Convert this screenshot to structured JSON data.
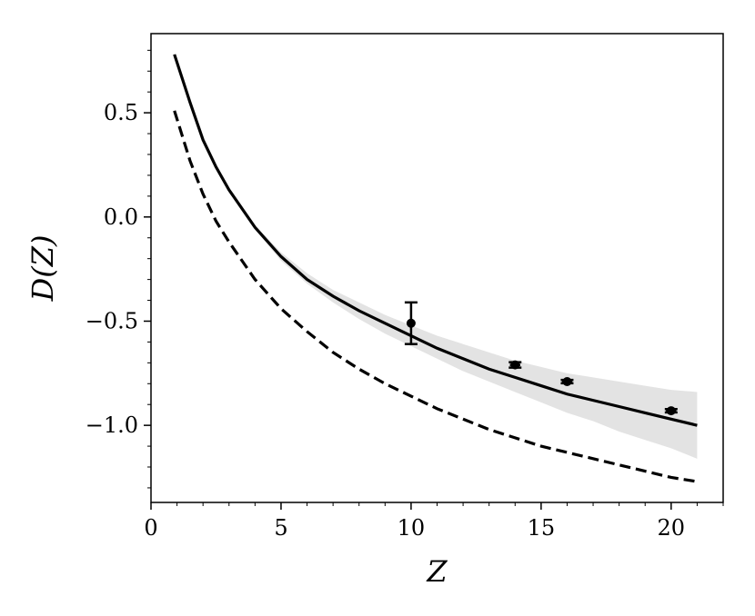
{
  "chart_data": {
    "type": "line",
    "xlabel": "Z",
    "ylabel": "D(Z)",
    "xlim": [
      0,
      22
    ],
    "ylim": [
      -1.37,
      0.88
    ],
    "x_ticks": [
      0,
      5,
      10,
      15,
      20
    ],
    "x_tick_labels": [
      "0",
      "5",
      "10",
      "15",
      "20"
    ],
    "y_ticks": [
      0.5,
      0.0,
      -0.5,
      -1.0
    ],
    "y_tick_labels": [
      "0.5",
      "0.0",
      "−0.5",
      "−1.0"
    ],
    "grid": false,
    "legend": "none",
    "series": [
      {
        "style": "solid",
        "color": "#000000",
        "x": [
          0.9,
          1.5,
          2,
          2.5,
          3,
          4,
          5,
          6,
          7,
          8,
          9,
          10,
          11,
          12,
          13,
          14,
          15,
          16,
          17,
          18,
          19,
          20,
          21
        ],
        "y": [
          0.78,
          0.55,
          0.37,
          0.24,
          0.13,
          -0.05,
          -0.19,
          -0.3,
          -0.38,
          -0.45,
          -0.51,
          -0.57,
          -0.63,
          -0.68,
          -0.73,
          -0.77,
          -0.81,
          -0.85,
          -0.88,
          -0.91,
          -0.94,
          -0.97,
          -1.0
        ]
      },
      {
        "style": "dashed",
        "color": "#000000",
        "x": [
          0.9,
          1.5,
          2,
          2.5,
          3,
          4,
          5,
          6,
          7,
          8,
          9,
          10,
          11,
          12,
          13,
          14,
          15,
          16,
          17,
          18,
          19,
          20,
          21
        ],
        "y": [
          0.51,
          0.27,
          0.11,
          -0.02,
          -0.12,
          -0.3,
          -0.44,
          -0.55,
          -0.65,
          -0.73,
          -0.8,
          -0.86,
          -0.92,
          -0.97,
          -1.02,
          -1.06,
          -1.1,
          -1.13,
          -1.16,
          -1.19,
          -1.22,
          -1.25,
          -1.27
        ]
      }
    ],
    "band": {
      "color": "#e3e3e3",
      "x": [
        3,
        4,
        5,
        6,
        7,
        8,
        9,
        10,
        11,
        12,
        13,
        14,
        15,
        16,
        17,
        18,
        19,
        20,
        21
      ],
      "lower": [
        0.13,
        -0.06,
        -0.21,
        -0.32,
        -0.41,
        -0.49,
        -0.56,
        -0.62,
        -0.68,
        -0.74,
        -0.79,
        -0.84,
        -0.89,
        -0.94,
        -0.98,
        -1.03,
        -1.07,
        -1.11,
        -1.16
      ],
      "upper": [
        0.13,
        -0.04,
        -0.17,
        -0.27,
        -0.35,
        -0.41,
        -0.47,
        -0.52,
        -0.57,
        -0.61,
        -0.65,
        -0.69,
        -0.72,
        -0.75,
        -0.77,
        -0.79,
        -0.81,
        -0.83,
        -0.84
      ]
    },
    "points": [
      {
        "x": 10,
        "y": -0.51,
        "yerr": 0.1,
        "xerr": 0
      },
      {
        "x": 14,
        "y": -0.71,
        "yerr": 0.013,
        "xerr": 0.2
      },
      {
        "x": 16,
        "y": -0.79,
        "yerr": 0.008,
        "xerr": 0.2
      },
      {
        "x": 20,
        "y": -0.93,
        "yerr": 0.008,
        "xerr": 0.2
      }
    ]
  }
}
